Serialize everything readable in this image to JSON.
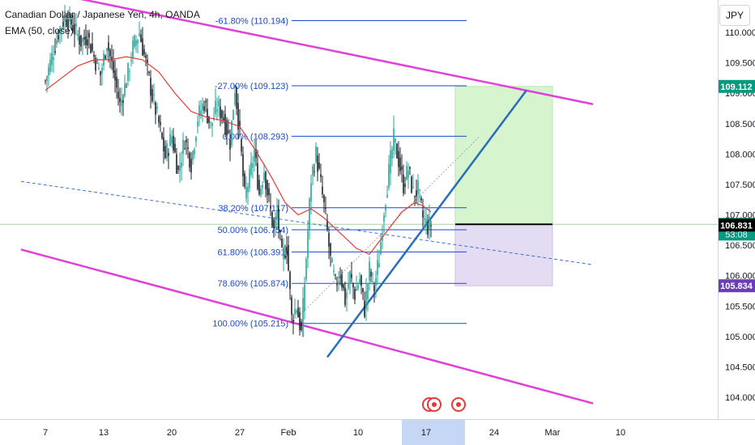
{
  "header": {
    "symbol_line": "Canadian Dollar / Japanese Yen, 4h, OANDA",
    "indicator_line": "EMA (50, close)"
  },
  "currency_button": "JPY",
  "colors": {
    "up_candle": "#26a69a",
    "down_candle": "#ef5350",
    "candle_dark": "#1e222d",
    "fib_line": "#1848cc",
    "channel": "#e040d8",
    "trendline": "#2a6db8",
    "ema": "#e53935",
    "profit_zone": "#d6f5cf",
    "loss_zone": "#e4dcf2",
    "highlight_date": "#c6d6f5"
  },
  "chart_data": {
    "type": "candlestick",
    "title": "Canadian Dollar / Japanese Yen, 4h, OANDA",
    "timeframe": "4h",
    "source": "OANDA",
    "indicator": "EMA (50, close)",
    "ylim": [
      103.7,
      110.4
    ],
    "y_ticks": [
      "104.000",
      "104.500",
      "105.000",
      "105.500",
      "106.000",
      "106.500",
      "107.000",
      "107.500",
      "108.000",
      "108.500",
      "109.000",
      "109.500",
      "110.000"
    ],
    "x_ticks": [
      {
        "label": "7",
        "slot": 0
      },
      {
        "label": "13",
        "slot": 36
      },
      {
        "label": "20",
        "slot": 78
      },
      {
        "label": "27",
        "slot": 120
      },
      {
        "label": "Feb",
        "slot": 150
      },
      {
        "label": "10",
        "slot": 193
      },
      {
        "label": "17",
        "slot": 235
      },
      {
        "label": "24",
        "slot": 277
      },
      {
        "label": "Mar",
        "slot": 313
      },
      {
        "label": "10",
        "slot": 355
      }
    ],
    "highlighted_x_label": "17",
    "price_badges": [
      {
        "label": "109.112",
        "value": 109.112,
        "style": "green"
      },
      {
        "label": "106.844",
        "value": 106.844,
        "style": "green",
        "countdown": "53:08"
      },
      {
        "label": "106.831",
        "value": 106.831,
        "style": "black"
      },
      {
        "label": "105.834",
        "value": 105.834,
        "style": "purple"
      }
    ],
    "fib_levels": [
      {
        "label": "-61.80% (110.194)",
        "value": 110.194
      },
      {
        "label": "-27.00% (109.123)",
        "value": 109.123
      },
      {
        "label": "0.00% (108.293)",
        "value": 108.293
      },
      {
        "label": "38.20% (107.117)",
        "value": 107.117
      },
      {
        "label": "50.00% (106.754)",
        "value": 106.754
      },
      {
        "label": "61.80% (106.391)",
        "value": 106.391
      },
      {
        "label": "78.60% (105.874)",
        "value": 105.874
      },
      {
        "label": "100.00% (105.215)",
        "value": 105.215
      }
    ],
    "fib_range_slots": [
      152,
      260
    ],
    "channel_upper": [
      {
        "slot": -15,
        "value": 110.75
      },
      {
        "slot": 338,
        "value": 108.82
      }
    ],
    "channel_lower": [
      {
        "slot": -15,
        "value": 106.43
      },
      {
        "slot": 338,
        "value": 103.9
      }
    ],
    "channel_mid": [
      {
        "slot": -15,
        "value": 107.55
      },
      {
        "slot": 338,
        "value": 106.18
      }
    ],
    "trendline": [
      {
        "slot": 174,
        "value": 104.66
      },
      {
        "slot": 297,
        "value": 109.05
      }
    ],
    "fib_diagonal": [
      {
        "slot": 152,
        "value": 105.215
      },
      {
        "slot": 268,
        "value": 108.29
      }
    ],
    "position": {
      "slots": [
        253,
        313
      ],
      "entry": 106.844,
      "target": 109.112,
      "stop": 105.834,
      "target_label": "109.112",
      "stop_label": "105.834"
    },
    "current_price_line": 106.844,
    "events_slots": [
      237,
      240,
      255
    ],
    "price_path": [
      [
        0,
        109.2
      ],
      [
        4,
        109.6
      ],
      [
        8,
        110.0
      ],
      [
        12,
        110.25
      ],
      [
        16,
        110.15
      ],
      [
        22,
        109.85
      ],
      [
        26,
        109.95
      ],
      [
        30,
        109.6
      ],
      [
        34,
        109.3
      ],
      [
        38,
        109.85
      ],
      [
        42,
        109.35
      ],
      [
        46,
        108.8
      ],
      [
        50,
        109.2
      ],
      [
        54,
        109.75
      ],
      [
        58,
        110.0
      ],
      [
        62,
        109.5
      ],
      [
        66,
        108.95
      ],
      [
        70,
        108.5
      ],
      [
        74,
        107.95
      ],
      [
        78,
        108.3
      ],
      [
        82,
        107.7
      ],
      [
        86,
        108.25
      ],
      [
        90,
        107.85
      ],
      [
        94,
        108.6
      ],
      [
        98,
        108.85
      ],
      [
        102,
        108.45
      ],
      [
        106,
        108.8
      ],
      [
        110,
        108.6
      ],
      [
        114,
        108.2
      ],
      [
        117,
        109.1
      ],
      [
        120,
        108.3
      ],
      [
        123,
        107.3
      ],
      [
        126,
        107.6
      ],
      [
        129,
        108.05
      ],
      [
        132,
        107.35
      ],
      [
        135,
        107.75
      ],
      [
        138,
        107.2
      ],
      [
        141,
        106.75
      ],
      [
        143,
        107.05
      ],
      [
        146,
        106.3
      ],
      [
        149,
        106.5
      ],
      [
        152,
        105.3
      ],
      [
        155,
        105.5
      ],
      [
        158,
        105.05
      ],
      [
        161,
        106.3
      ],
      [
        164,
        107.6
      ],
      [
        167,
        108.0
      ],
      [
        170,
        107.5
      ],
      [
        173,
        106.95
      ],
      [
        176,
        106.25
      ],
      [
        179,
        105.85
      ],
      [
        182,
        106.05
      ],
      [
        185,
        105.6
      ],
      [
        188,
        106.0
      ],
      [
        191,
        105.7
      ],
      [
        194,
        105.95
      ],
      [
        197,
        105.45
      ],
      [
        200,
        106.1
      ],
      [
        203,
        105.8
      ],
      [
        206,
        106.3
      ],
      [
        209,
        107.1
      ],
      [
        212,
        107.7
      ],
      [
        215,
        108.25
      ],
      [
        218,
        107.9
      ],
      [
        221,
        107.5
      ],
      [
        224,
        107.75
      ],
      [
        227,
        107.35
      ],
      [
        230,
        107.4
      ],
      [
        233,
        106.95
      ],
      [
        236,
        106.8
      ],
      [
        238,
        106.844
      ]
    ],
    "ema_path": [
      [
        0,
        109.05
      ],
      [
        10,
        109.25
      ],
      [
        20,
        109.45
      ],
      [
        30,
        109.55
      ],
      [
        40,
        109.55
      ],
      [
        50,
        109.6
      ],
      [
        60,
        109.55
      ],
      [
        70,
        109.35
      ],
      [
        80,
        109.0
      ],
      [
        90,
        108.7
      ],
      [
        100,
        108.6
      ],
      [
        110,
        108.55
      ],
      [
        120,
        108.45
      ],
      [
        130,
        108.05
      ],
      [
        140,
        107.6
      ],
      [
        148,
        107.2
      ],
      [
        156,
        107.0
      ],
      [
        164,
        107.1
      ],
      [
        172,
        106.95
      ],
      [
        182,
        106.7
      ],
      [
        192,
        106.45
      ],
      [
        200,
        106.35
      ],
      [
        210,
        106.7
      ],
      [
        220,
        107.05
      ],
      [
        228,
        107.2
      ],
      [
        233,
        107.15
      ],
      [
        238,
        107.05
      ]
    ]
  }
}
